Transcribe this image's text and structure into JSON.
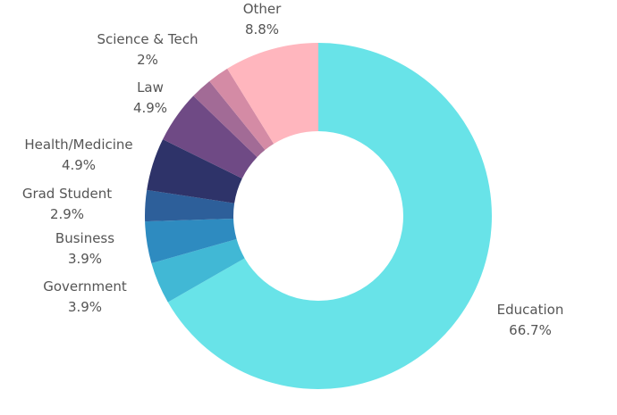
{
  "chart_data": {
    "type": "pie",
    "subtype": "donut",
    "title": "",
    "start": "top",
    "direction": "clockwise",
    "slices": [
      {
        "label": "Education",
        "value": 66.7,
        "value_label": "66.7%",
        "color": "#68E3E8"
      },
      {
        "label": "Government",
        "value": 3.9,
        "value_label": "3.9%",
        "color": "#41B8D5"
      },
      {
        "label": "Business",
        "value": 3.9,
        "value_label": "3.9%",
        "color": "#2E8BC0"
      },
      {
        "label": "Grad Student",
        "value": 2.9,
        "value_label": "2.9%",
        "color": "#2D5F9A"
      },
      {
        "label": "Health/Medicine",
        "value": 4.9,
        "value_label": "4.9%",
        "color": "#2E3369"
      },
      {
        "label": "Law",
        "value": 4.9,
        "value_label": "4.9%",
        "color": "#6F4A85"
      },
      {
        "label": "",
        "value": 2.0,
        "value_label": "",
        "color": "#A26B96"
      },
      {
        "label": "Science & Tech",
        "value": 2,
        "value_label": "2%",
        "color": "#D48BA5"
      },
      {
        "label": "Other",
        "value": 8.8,
        "value_label": "8.8%",
        "color": "#FFB6BE"
      }
    ]
  }
}
